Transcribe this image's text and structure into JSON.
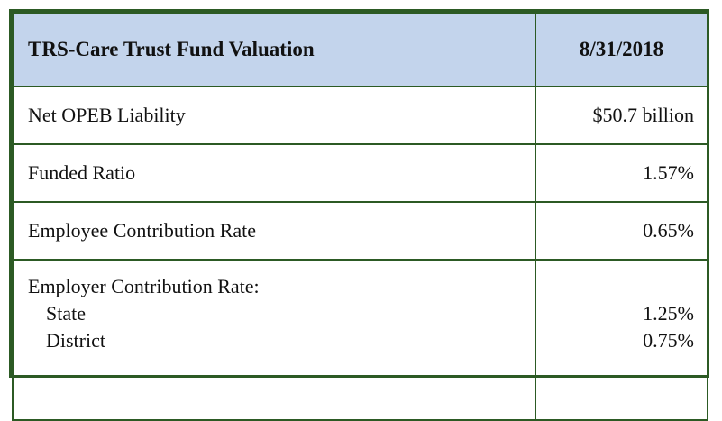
{
  "table": {
    "header": {
      "title": "TRS-Care Trust Fund Valuation",
      "date": "8/31/2018"
    },
    "rows": [
      {
        "label": "Net OPEB Liability",
        "value": "$50.7 billion"
      },
      {
        "label": "Funded Ratio",
        "value": "1.57%"
      },
      {
        "label": "Employee Contribution Rate",
        "value": "0.65%"
      }
    ],
    "employer": {
      "label": "Employer Contribution Rate:",
      "items": [
        {
          "label": "State",
          "value": "1.25%"
        },
        {
          "label": "District",
          "value": "0.75%"
        }
      ]
    }
  },
  "colors": {
    "border": "#2c5a24",
    "header_fill": "#c3d4ec"
  }
}
